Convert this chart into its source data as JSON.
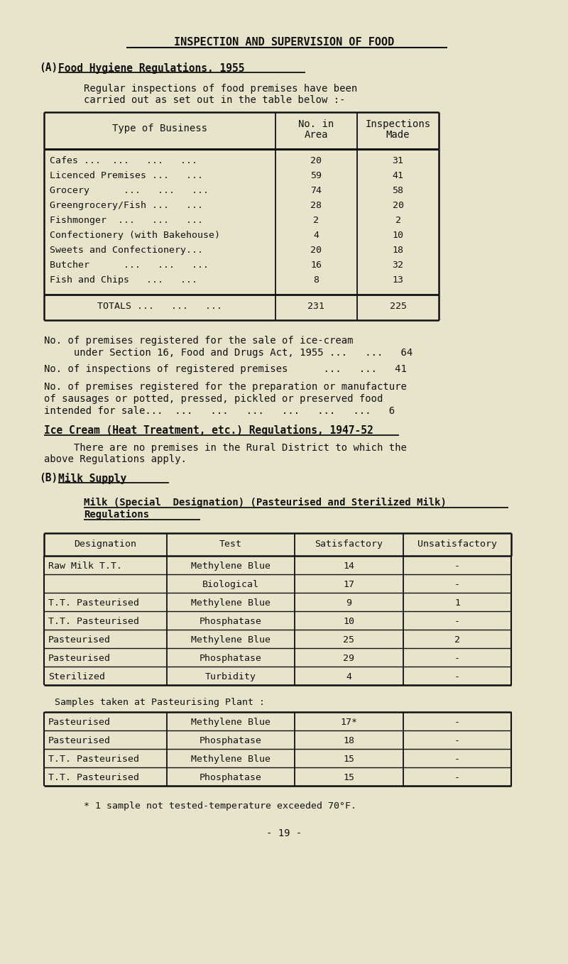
{
  "bg_color": "#e8e4cc",
  "title": "INSPECTION AND SUPERVISION OF FOOD",
  "table1_headers": [
    "Type of Business",
    "No. in\nArea",
    "Inspections\nMade"
  ],
  "table1_rows": [
    [
      "Cafes ...  ...   ...   ...",
      "20",
      "31"
    ],
    [
      "Licenced Premises ...   ...",
      "59",
      "41"
    ],
    [
      "Grocery      ...   ...   ...",
      "74",
      "58"
    ],
    [
      "Greengrocery/Fish ...   ...",
      "28",
      "20"
    ],
    [
      "Fishmonger  ...   ...   ...",
      "2",
      "2"
    ],
    [
      "Confectionery (with Bakehouse)",
      "4",
      "10"
    ],
    [
      "Sweets and Confectionery...",
      "20",
      "18"
    ],
    [
      "Butcher      ...   ...   ...",
      "16",
      "32"
    ],
    [
      "Fish and Chips   ...   ...",
      "8",
      "13"
    ]
  ],
  "table1_totals": [
    "TOTALS ...   ...   ...",
    "231",
    "225"
  ],
  "table2_headers": [
    "Designation",
    "Test",
    "Satisfactory",
    "Unsatisfactory"
  ],
  "table2_rows": [
    [
      "Raw Milk T.T.",
      "Methylene Blue",
      "14",
      "-"
    ],
    [
      "",
      "Biological",
      "17",
      "-"
    ],
    [
      "T.T. Pasteurised",
      "Methylene Blue",
      "9",
      "1"
    ],
    [
      "T.T. Pasteurised",
      "Phosphatase",
      "10",
      "-"
    ],
    [
      "Pasteurised",
      "Methylene Blue",
      "25",
      "2"
    ],
    [
      "Pasteurised",
      "Phosphatase",
      "29",
      "-"
    ],
    [
      "Sterilized",
      "Turbidity",
      "4",
      "-"
    ]
  ],
  "table3_rows": [
    [
      "Pasteurised",
      "Methylene Blue",
      "17*",
      "-"
    ],
    [
      "Pasteurised",
      "Phosphatase",
      "18",
      "-"
    ],
    [
      "T.T. Pasteurised",
      "Methylene Blue",
      "15",
      "-"
    ],
    [
      "T.T. Pasteurised",
      "Phosphatase",
      "15",
      "-"
    ]
  ],
  "footnote": "* 1 sample not tested-temperature exceeded 70°F.",
  "page_number": "- 19 -"
}
